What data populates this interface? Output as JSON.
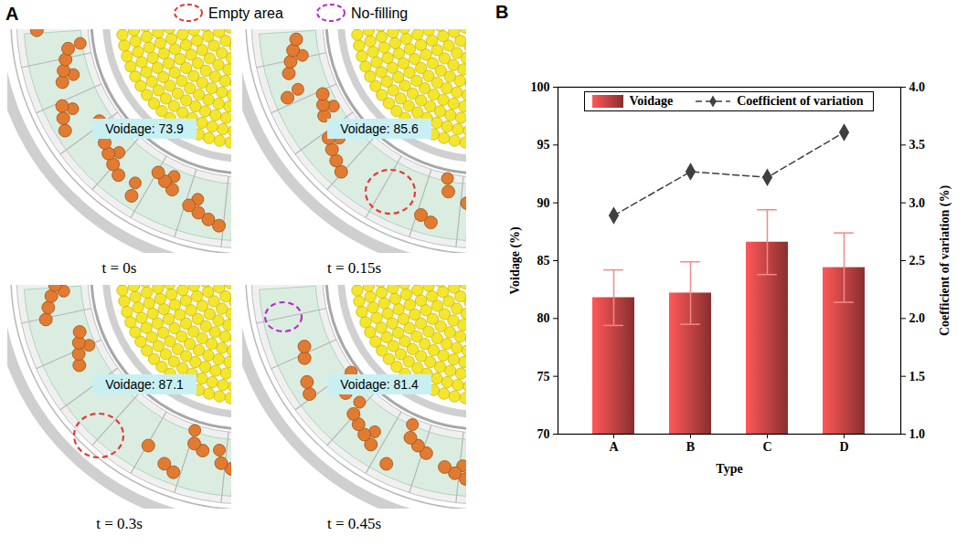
{
  "panel_a": {
    "letter": "A",
    "legend": [
      {
        "label": "Empty area",
        "color": "#e53935"
      },
      {
        "label": "No-filling",
        "color": "#c026d3"
      }
    ],
    "frames": [
      {
        "time": "t = 0s",
        "voidage_label": "Voidage: 73.9",
        "highlight": null
      },
      {
        "time": "t = 0.15s",
        "voidage_label": "Voidage: 85.6",
        "highlight": 0
      },
      {
        "time": "t = 0.3s",
        "voidage_label": "Voidage: 87.1",
        "highlight": 0
      },
      {
        "time": "t = 0.45s",
        "voidage_label": "Voidage: 81.4",
        "highlight": 1
      }
    ]
  },
  "chart_data": {
    "letter": "B",
    "type": "bar",
    "categories": [
      "A",
      "B",
      "C",
      "D"
    ],
    "x_label": "Type",
    "y_label": "Voidage (%)",
    "y2_label": "Coefficient of variation (%)",
    "ylim": [
      70,
      100
    ],
    "yticks": [
      70,
      75,
      80,
      85,
      90,
      95,
      100
    ],
    "y2lim": [
      1,
      4
    ],
    "y2ticks": [
      {
        "value": 1,
        "label": "1.0"
      },
      {
        "value": 1.5,
        "label": "1.5"
      },
      {
        "value": 2,
        "label": "2.0"
      },
      {
        "value": 2.5,
        "label": "2.5"
      },
      {
        "value": 3,
        "label": "3.0"
      },
      {
        "value": 3.5,
        "label": "3.5"
      },
      {
        "value": 4,
        "label": "4.0"
      }
    ],
    "legend": "top",
    "series": [
      {
        "name": "Voidage",
        "type": "bar",
        "color": "#d94a4a",
        "values": [
          81.8,
          82.2,
          86.6,
          84.4
        ],
        "errors": [
          2.4,
          2.7,
          2.8,
          3.0
        ]
      },
      {
        "name": "Coefficient of variation",
        "type": "line",
        "axis": "y2",
        "color": "#404040",
        "marker": "diamond",
        "line_style": "dashed",
        "values": [
          2.89,
          3.27,
          3.22,
          3.61
        ]
      }
    ]
  }
}
